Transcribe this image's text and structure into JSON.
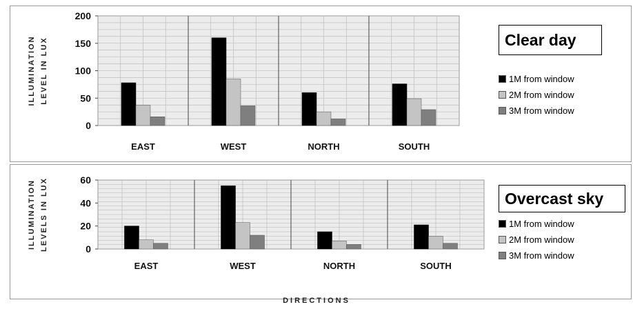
{
  "colors": {
    "series1": "#000000",
    "series2": "#c4c4c4",
    "series3": "#7f7f7f",
    "plot_bg": "#ececec",
    "grid": "#b5b5b5"
  },
  "chart_data": [
    {
      "type": "bar",
      "title": "Clear day",
      "ylabel_line1": "ILLUMINATION",
      "ylabel_line2": "LEVEL IN LUX",
      "xlabel": "",
      "categories": [
        "EAST",
        "WEST",
        "NORTH",
        "SOUTH"
      ],
      "ylim": [
        0,
        200
      ],
      "yticks": [
        0,
        50,
        100,
        150,
        200
      ],
      "grid": true,
      "legend_placement": "right",
      "series": [
        {
          "name": "1M from window",
          "values": [
            78,
            160,
            60,
            76
          ]
        },
        {
          "name": "2M from window",
          "values": [
            37,
            85,
            25,
            49
          ]
        },
        {
          "name": "3M from window",
          "values": [
            16,
            36,
            12,
            29
          ]
        }
      ]
    },
    {
      "type": "bar",
      "title": "Overcast sky",
      "ylabel_line1": "ILLUMINATION",
      "ylabel_line2": "LEVELS IN LUX",
      "xlabel": "DIRECTIONS",
      "categories": [
        "EAST",
        "WEST",
        "NORTH",
        "SOUTH"
      ],
      "ylim": [
        0,
        60
      ],
      "yticks": [
        0,
        20,
        40,
        60
      ],
      "grid": true,
      "legend_placement": "right",
      "series": [
        {
          "name": "1M from window",
          "values": [
            20,
            55,
            15,
            21
          ]
        },
        {
          "name": "2M from window",
          "values": [
            8,
            23,
            7,
            11
          ]
        },
        {
          "name": "3M from window",
          "values": [
            5,
            12,
            4,
            5
          ]
        }
      ]
    }
  ]
}
